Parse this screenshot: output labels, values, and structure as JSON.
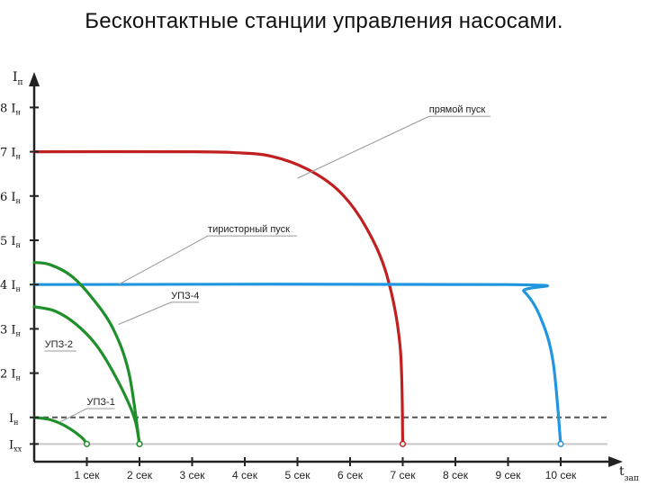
{
  "slide": {
    "title": "Бесконтактные станции управления насосами."
  },
  "chart_data": {
    "type": "line",
    "y_axis_label": {
      "main": "I",
      "sub": "п"
    },
    "x_axis_label": {
      "main": "t",
      "sub": "зап"
    },
    "y_ticks": [
      {
        "value": 8,
        "coef": "8",
        "main": "I",
        "sub": "н"
      },
      {
        "value": 7,
        "coef": "7",
        "main": "I",
        "sub": "н"
      },
      {
        "value": 6,
        "coef": "6",
        "main": "I",
        "sub": "н"
      },
      {
        "value": 5,
        "coef": "5",
        "main": "I",
        "sub": "н"
      },
      {
        "value": 4,
        "coef": "4",
        "main": "I",
        "sub": "н"
      },
      {
        "value": 3,
        "coef": "3",
        "main": "I",
        "sub": "н"
      },
      {
        "value": 2,
        "coef": "2",
        "main": "I",
        "sub": "н"
      },
      {
        "value": 1,
        "coef": "",
        "main": "I",
        "sub": "н"
      },
      {
        "value": 0.4,
        "coef": "",
        "main": "I",
        "sub": "хх"
      }
    ],
    "x_ticks": [
      {
        "value": 1,
        "label": "1 сек"
      },
      {
        "value": 2,
        "label": "2 сек"
      },
      {
        "value": 3,
        "label": "3 сек"
      },
      {
        "value": 4,
        "label": "4 сек"
      },
      {
        "value": 5,
        "label": "5 сек"
      },
      {
        "value": 6,
        "label": "6 сек"
      },
      {
        "value": 7,
        "label": "7 сек"
      },
      {
        "value": 8,
        "label": "8 сек"
      },
      {
        "value": 9,
        "label": "9 сек"
      },
      {
        "value": 10,
        "label": "10 сек"
      }
    ],
    "xlim": [
      0,
      10.8
    ],
    "ylim": [
      0,
      8.5
    ],
    "reference_lines": [
      {
        "y": 1,
        "style": "dashed",
        "color": "#555555"
      },
      {
        "y": 0.4,
        "style": "solid",
        "color": "#c8c8c8"
      }
    ],
    "series": [
      {
        "key": "direct",
        "color": "#c0201f",
        "points": [
          [
            0,
            7
          ],
          [
            3,
            7
          ],
          [
            3.8,
            6.98
          ],
          [
            4.5,
            6.9
          ],
          [
            5.2,
            6.6
          ],
          [
            5.8,
            6.1
          ],
          [
            6.3,
            5.3
          ],
          [
            6.7,
            4.2
          ],
          [
            6.95,
            2.6
          ],
          [
            7.0,
            0.4
          ]
        ]
      },
      {
        "key": "thyristor",
        "color": "#2196e0",
        "points": [
          [
            0,
            4
          ],
          [
            9.0,
            4
          ],
          [
            9.3,
            3.85
          ],
          [
            9.6,
            3.3
          ],
          [
            9.85,
            2.3
          ],
          [
            10.0,
            0.4
          ]
        ]
      },
      {
        "key": "upz4",
        "color": "#1f8f2a",
        "points": [
          [
            0,
            4.5
          ],
          [
            0.3,
            4.45
          ],
          [
            0.7,
            4.2
          ],
          [
            1.1,
            3.7
          ],
          [
            1.5,
            3.0
          ],
          [
            1.8,
            2.0
          ],
          [
            2.0,
            0.4
          ]
        ]
      },
      {
        "key": "upz2",
        "color": "#1f8f2a",
        "points": [
          [
            0,
            3.5
          ],
          [
            0.4,
            3.4
          ],
          [
            0.8,
            3.1
          ],
          [
            1.2,
            2.6
          ],
          [
            1.6,
            1.8
          ],
          [
            1.9,
            1.0
          ],
          [
            2.0,
            0.4
          ]
        ]
      },
      {
        "key": "upz1",
        "color": "#1f8f2a",
        "points": [
          [
            0,
            1
          ],
          [
            0.3,
            0.95
          ],
          [
            0.6,
            0.8
          ],
          [
            0.9,
            0.55
          ],
          [
            1.0,
            0.4
          ]
        ]
      }
    ],
    "annotations": [
      {
        "text": "прямой пуск",
        "series": "direct",
        "at": [
          5.0,
          6.4
        ],
        "label_at": [
          7.5,
          7.8
        ]
      },
      {
        "text": "тиристорный пуск",
        "series": "thyristor",
        "at": [
          1.6,
          4.0
        ],
        "label_at": [
          3.3,
          5.1
        ]
      },
      {
        "text": "УПЗ-4",
        "series": "upz4",
        "at": [
          1.6,
          3.1
        ],
        "label_at": [
          2.6,
          3.6
        ]
      },
      {
        "text": "УПЗ-2",
        "series": "upz2",
        "at": [
          0.8,
          2.5
        ],
        "label_at": [
          0.2,
          2.5
        ]
      },
      {
        "text": "УПЗ-1",
        "series": "upz1",
        "at": [
          0.5,
          0.9
        ],
        "label_at": [
          1.0,
          1.2
        ]
      }
    ],
    "grid": false
  }
}
